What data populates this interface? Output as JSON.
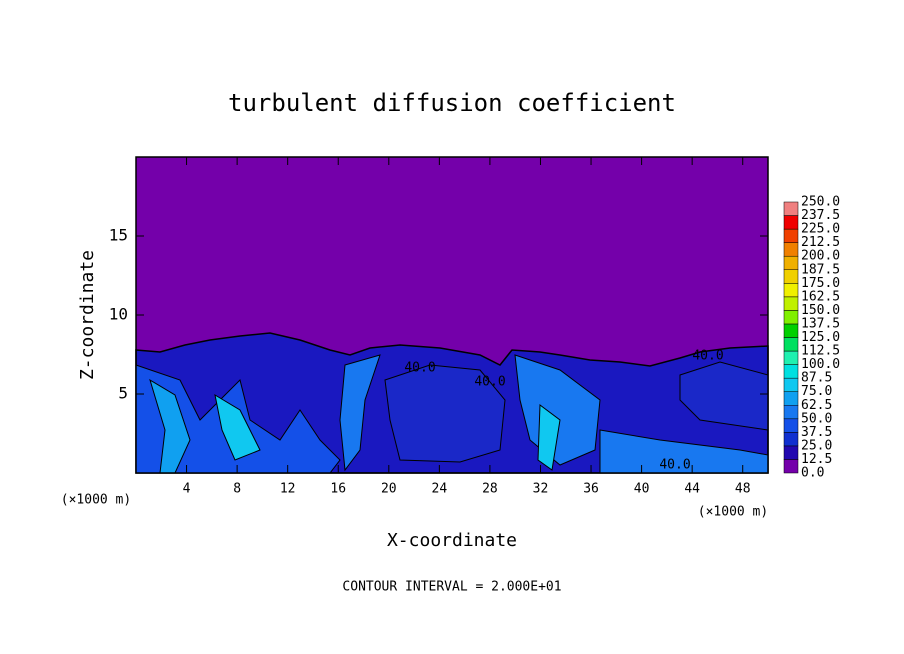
{
  "chart_data": {
    "type": "contour",
    "title": "turbulent diffusion coefficient",
    "x_label": "X-coordinate",
    "y_label": "Z-coordinate",
    "x_unit": "(×1000 m)",
    "xlim": [
      0,
      50
    ],
    "ylim": [
      0,
      20
    ],
    "xticks": [
      4,
      8,
      12,
      16,
      20,
      24,
      28,
      32,
      36,
      40,
      44,
      48
    ],
    "yticks": [
      5,
      10,
      15
    ],
    "contour_interval": "CONTOUR INTERVAL = 2.000E+01",
    "contour_labels": [
      {
        "value": 40,
        "label": "40.0"
      },
      {
        "value": 40,
        "label": "40.0"
      },
      {
        "value": 40,
        "label": "40.0"
      },
      {
        "value": 40,
        "label": "40.0"
      }
    ],
    "colorbar": {
      "levels": [
        {
          "value": 0,
          "label": "0.0"
        },
        {
          "value": 12.5,
          "label": "12.5"
        },
        {
          "value": 25,
          "label": "25.0"
        },
        {
          "value": 37.5,
          "label": "37.5"
        },
        {
          "value": 50,
          "label": "50.0"
        },
        {
          "value": 62.5,
          "label": "62.5"
        },
        {
          "value": 75,
          "label": "75.0"
        },
        {
          "value": 87.5,
          "label": "87.5"
        },
        {
          "value": 100,
          "label": "100.0"
        },
        {
          "value": 112.5,
          "label": "112.5"
        },
        {
          "value": 125,
          "label": "125.0"
        },
        {
          "value": 137.5,
          "label": "137.5"
        },
        {
          "value": 150,
          "label": "150.0"
        },
        {
          "value": 162.5,
          "label": "162.5"
        },
        {
          "value": 175,
          "label": "175.0"
        },
        {
          "value": 187.5,
          "label": "187.5"
        },
        {
          "value": 200,
          "label": "200.0"
        },
        {
          "value": 212.5,
          "label": "212.5"
        },
        {
          "value": 225,
          "label": "225.0"
        },
        {
          "value": 237.5,
          "label": "237.5"
        },
        {
          "value": 250,
          "label": "250.0"
        }
      ],
      "colors": [
        "#7400aa",
        "#2208b0",
        "#1030d0",
        "#1450e8",
        "#1878f0",
        "#10a0f0",
        "#10c8f0",
        "#00e0e0",
        "#20f0b0",
        "#00e060",
        "#00d000",
        "#80f000",
        "#c0f000",
        "#f0f000",
        "#f0d000",
        "#f0b000",
        "#f08000",
        "#f04000",
        "#f00000",
        "#f08080"
      ]
    }
  }
}
